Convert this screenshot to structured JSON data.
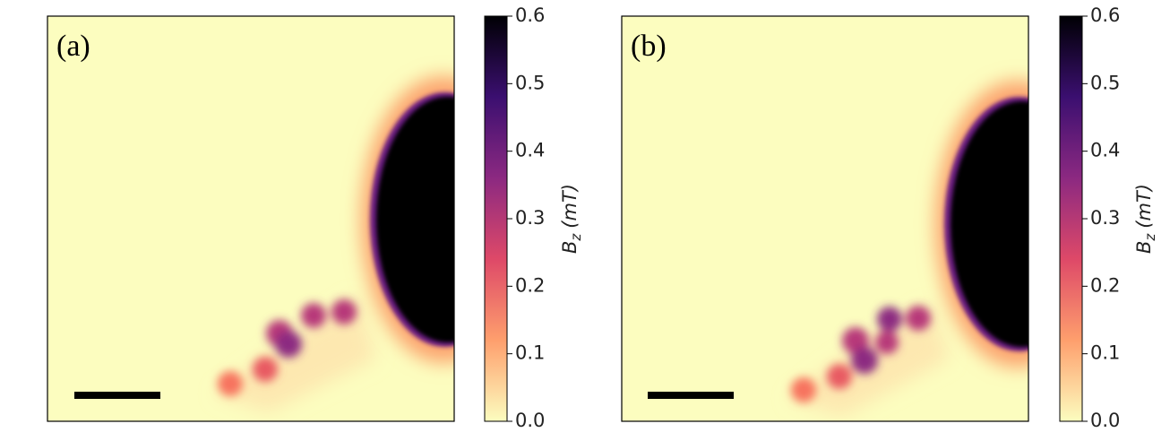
{
  "chart_data": [
    {
      "type": "image",
      "title": "(a)",
      "colormap": "magma_r",
      "colorbar_label": {
        "symbol": "B",
        "subscript": "z",
        "unit": "(mT)"
      },
      "ylim": [
        0,
        0.6
      ],
      "yticks": [
        {
          "value": 0,
          "label": "0.0"
        },
        0.1,
        0.2,
        0.3,
        0.4,
        0.5,
        0.6
      ]
    },
    {
      "type": "image",
      "title": "(b)",
      "colormap": "magma_r",
      "colorbar_label": {
        "symbol": "B",
        "subscript": "z",
        "unit": "(mT)"
      },
      "ylim": [
        0,
        0.6
      ],
      "yticks": [
        {
          "value": 0,
          "label": "0.0"
        },
        0.1,
        0.2,
        0.3,
        0.4,
        0.5,
        0.6
      ]
    }
  ]
}
